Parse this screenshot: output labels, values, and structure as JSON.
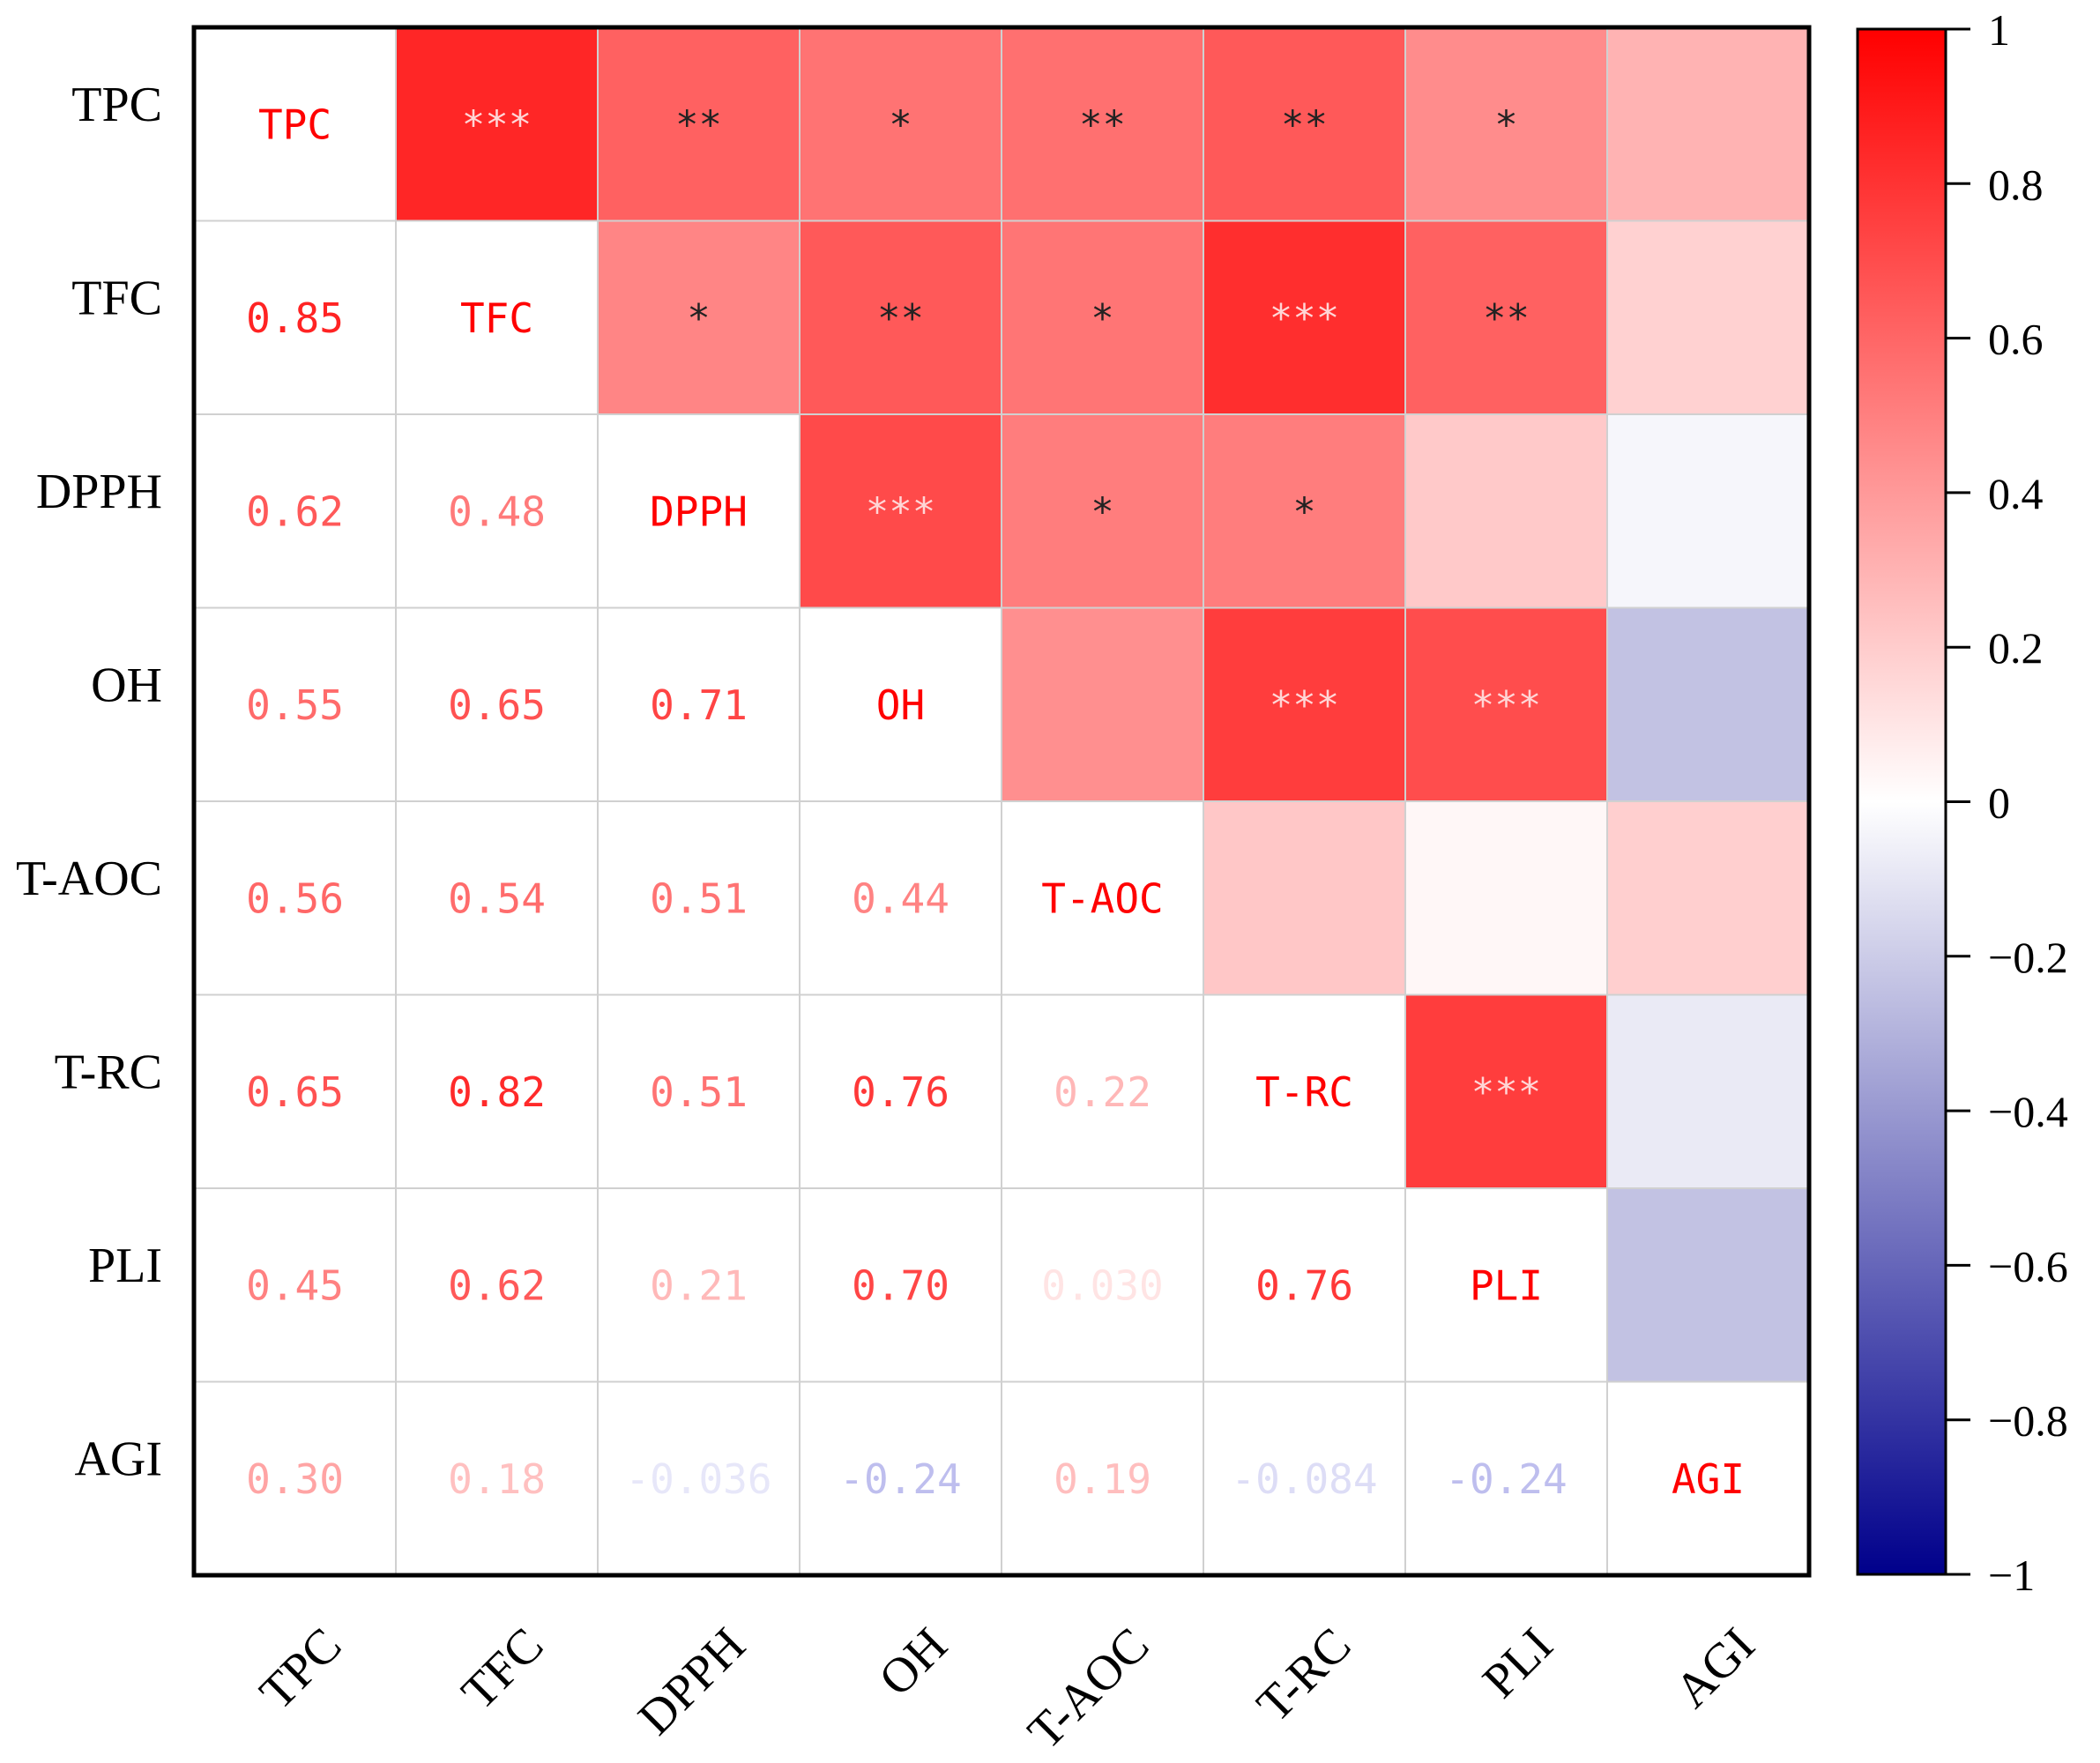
{
  "chart_data": {
    "type": "heatmap",
    "title": "",
    "variables": [
      "TPC",
      "TFC",
      "DPPH",
      "OH",
      "T-AOC",
      "T-RC",
      "PLI",
      "AGI"
    ],
    "lower_triangle_labels": [
      [
        null,
        null,
        null,
        null,
        null,
        null,
        null,
        null
      ],
      [
        "0.85",
        null,
        null,
        null,
        null,
        null,
        null,
        null
      ],
      [
        "0.62",
        "0.48",
        null,
        null,
        null,
        null,
        null,
        null
      ],
      [
        "0.55",
        "0.65",
        "0.71",
        null,
        null,
        null,
        null,
        null
      ],
      [
        "0.56",
        "0.54",
        "0.51",
        "0.44",
        null,
        null,
        null,
        null
      ],
      [
        "0.65",
        "0.82",
        "0.51",
        "0.76",
        "0.22",
        null,
        null,
        null
      ],
      [
        "0.45",
        "0.62",
        "0.21",
        "0.70",
        "0.030",
        "0.76",
        null,
        null
      ],
      [
        "0.30",
        "0.18",
        "-0.036",
        "-0.24",
        "0.19",
        "-0.084",
        "-0.24",
        null
      ]
    ],
    "correlations": [
      [
        1,
        0.85,
        0.62,
        0.55,
        0.56,
        0.65,
        0.45,
        0.3
      ],
      [
        0.85,
        1,
        0.48,
        0.65,
        0.54,
        0.82,
        0.62,
        0.18
      ],
      [
        0.62,
        0.48,
        1,
        0.71,
        0.51,
        0.51,
        0.21,
        -0.036
      ],
      [
        0.55,
        0.65,
        0.71,
        1,
        0.44,
        0.76,
        0.7,
        -0.24
      ],
      [
        0.56,
        0.54,
        0.51,
        0.44,
        1,
        0.22,
        0.03,
        0.19
      ],
      [
        0.65,
        0.82,
        0.51,
        0.76,
        0.22,
        1,
        0.76,
        -0.084
      ],
      [
        0.45,
        0.62,
        0.21,
        0.7,
        0.03,
        0.76,
        1,
        -0.24
      ],
      [
        0.3,
        0.18,
        -0.036,
        -0.24,
        0.19,
        -0.084,
        -0.24,
        1
      ]
    ],
    "significance": [
      [
        "",
        "***",
        "**",
        "*",
        "**",
        "**",
        "*",
        ""
      ],
      [
        "",
        "",
        "*",
        "**",
        "*",
        "***",
        "**",
        ""
      ],
      [
        "",
        "",
        "",
        "***",
        "*",
        "*",
        "",
        ""
      ],
      [
        "",
        "",
        "",
        "",
        "",
        "***",
        "***",
        ""
      ],
      [
        "",
        "",
        "",
        "",
        "",
        "",
        "",
        ""
      ],
      [
        "",
        "",
        "",
        "",
        "",
        "",
        "***",
        ""
      ],
      [
        "",
        "",
        "",
        "",
        "",
        "",
        "",
        ""
      ],
      [
        "",
        "",
        "",
        "",
        "",
        "",
        "",
        ""
      ]
    ],
    "colorbar": {
      "min": -1,
      "max": 1,
      "ticks": [
        1,
        0.8,
        0.6,
        0.4,
        0.2,
        0,
        -0.2,
        -0.4,
        -0.6,
        -0.8,
        -1
      ],
      "tick_labels": [
        "1",
        "0.8",
        "0.6",
        "0.4",
        "0.2",
        "0",
        "−0.2",
        "−0.4",
        "−0.6",
        "−0.8",
        "−1"
      ],
      "colors": {
        "positive": "#ff0000",
        "zero": "#ffffff",
        "negative": "#00008b"
      }
    },
    "diagonal_label_color": "#ff0000",
    "grid": true,
    "legend_position": "right"
  }
}
